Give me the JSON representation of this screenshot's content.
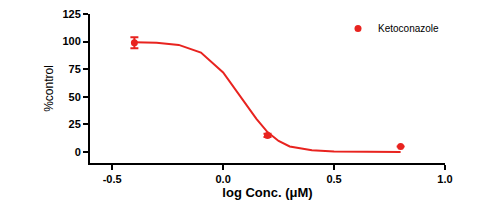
{
  "chart_data": {
    "type": "scatter",
    "xlabel": "log Conc. (μM)",
    "ylabel": "%control",
    "xlim": [
      -0.6,
      1.0
    ],
    "xticks": [
      -0.5,
      {
        "value": 0,
        "label": "0.0"
      },
      0.5,
      {
        "value": 1,
        "label": "1.0"
      }
    ],
    "ylim": [
      -10,
      125
    ],
    "yticks": [
      0,
      25,
      50,
      75,
      100,
      125
    ],
    "grid": false,
    "legend": "top right",
    "series": [
      {
        "name": "Ketoconazole",
        "type": "scatter",
        "marker": "circle",
        "color": "#e8231f",
        "x": [
          -0.4,
          0.2,
          0.8
        ],
        "values": [
          99,
          15,
          5
        ],
        "error": [
          5,
          1.5,
          0
        ]
      },
      {
        "type": "line",
        "line_style": "solid",
        "color": "#e8231f",
        "x": [
          -0.4,
          -0.3,
          -0.2,
          -0.1,
          0.0,
          0.05,
          0.1,
          0.15,
          0.2,
          0.25,
          0.3,
          0.4,
          0.5,
          0.6,
          0.8
        ],
        "values": [
          99.5,
          99,
          97,
          90,
          72,
          58,
          45,
          30,
          18,
          10,
          5,
          1.5,
          0.5,
          0.2,
          0
        ]
      }
    ]
  }
}
